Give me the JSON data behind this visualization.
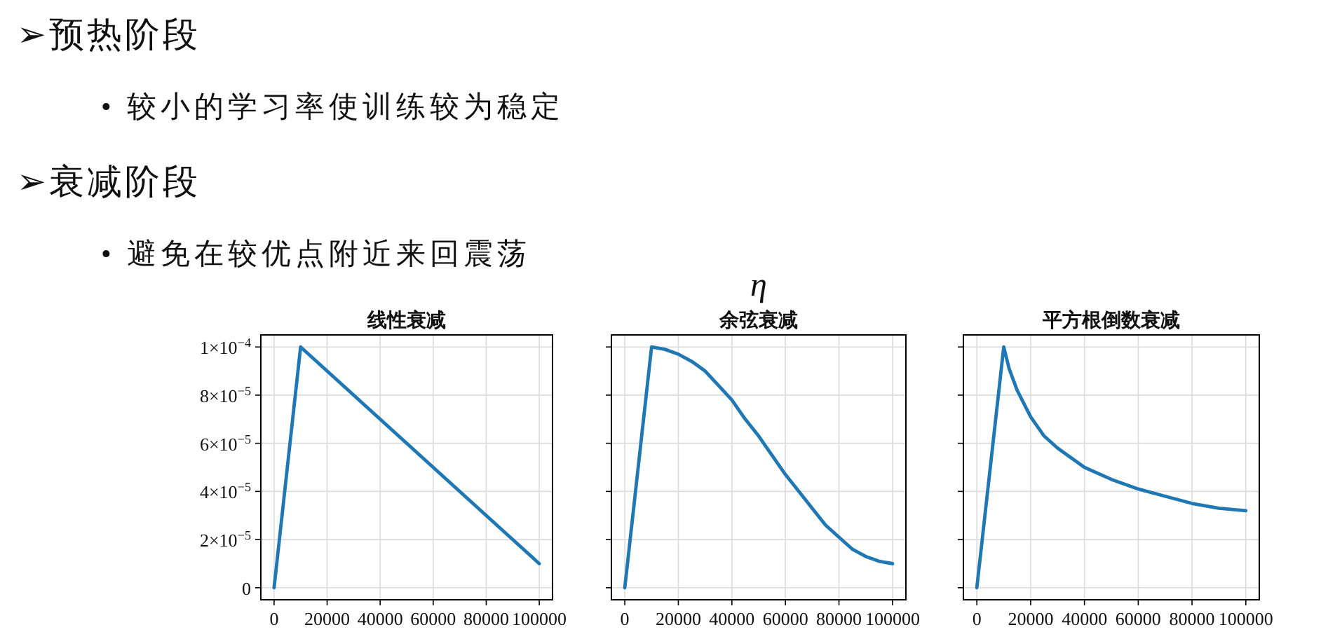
{
  "chart_data": [
    {
      "type": "other",
      "annotations": [
        "➢预热阶段",
        "• 较小的学习率使训练较为稳定",
        "➢衰减阶段",
        "• 避免在较优点附近来回震荡"
      ]
    },
    {
      "type": "line",
      "title": "线性衰减",
      "x": [
        0,
        10000,
        100000
      ],
      "series": [
        {
          "color": "#1f77b4",
          "values": [
            0,
            0.0001,
            1e-05
          ]
        }
      ],
      "xlim": [
        -5000,
        105000
      ],
      "ylim": [
        -5e-06,
        0.000105
      ],
      "xticks": [
        0,
        20000,
        40000,
        60000,
        80000,
        100000
      ],
      "yticks": [
        {
          "value": 0,
          "label": "0"
        },
        {
          "value": 2e-05,
          "label": "2×10$^{−5}$"
        },
        {
          "value": 4e-05,
          "label": "4×10$^{−5}$"
        },
        {
          "value": 6e-05,
          "label": "6×10$^{−5}$"
        },
        {
          "value": 8e-05,
          "label": "8×10$^{−5}$"
        },
        {
          "value": 0.0001,
          "label": "1×10$^{−4}$"
        }
      ],
      "grid": true
    },
    {
      "type": "line",
      "title": "余弦衰减",
      "annotations": [
        "η"
      ],
      "x": [
        0,
        10000,
        15000,
        20000,
        25000,
        30000,
        35000,
        40000,
        45000,
        50000,
        55000,
        60000,
        65000,
        70000,
        75000,
        80000,
        85000,
        90000,
        95000,
        100000
      ],
      "series": [
        {
          "color": "#1f77b4",
          "values": [
            0,
            0.0001,
            9.9e-05,
            9.7e-05,
            9.4e-05,
            9e-05,
            8.4e-05,
            7.8e-05,
            7e-05,
            6.3e-05,
            5.5e-05,
            4.7e-05,
            4e-05,
            3.3e-05,
            2.6e-05,
            2.1e-05,
            1.6e-05,
            1.3e-05,
            1.1e-05,
            1e-05
          ]
        }
      ],
      "xlim": [
        -5000,
        105000
      ],
      "ylim": [
        -5e-06,
        0.000105
      ],
      "xticks": [
        0,
        20000,
        40000,
        60000,
        80000,
        100000
      ],
      "yticks": [
        {
          "value": 0,
          "label": null
        },
        {
          "value": 2e-05,
          "label": null
        },
        {
          "value": 4e-05,
          "label": null
        },
        {
          "value": 6e-05,
          "label": null
        },
        {
          "value": 8e-05,
          "label": null
        },
        {
          "value": 0.0001,
          "label": null
        }
      ],
      "grid": true,
      "tick_labels": "x"
    },
    {
      "type": "line",
      "title": "平方根倒数衰减",
      "x": [
        0,
        10000,
        12000,
        15000,
        20000,
        25000,
        30000,
        40000,
        50000,
        60000,
        70000,
        80000,
        90000,
        100000
      ],
      "series": [
        {
          "color": "#1f77b4",
          "values": [
            0,
            0.0001,
            9.1e-05,
            8.2e-05,
            7.1e-05,
            6.3e-05,
            5.8e-05,
            5e-05,
            4.5e-05,
            4.1e-05,
            3.8e-05,
            3.5e-05,
            3.3e-05,
            3.2e-05
          ]
        }
      ],
      "xlim": [
        -5000,
        105000
      ],
      "ylim": [
        -5e-06,
        0.000105
      ],
      "xticks": [
        0,
        20000,
        40000,
        60000,
        80000,
        100000
      ],
      "yticks": [
        {
          "value": 0,
          "label": null
        },
        {
          "value": 2e-05,
          "label": null
        },
        {
          "value": 4e-05,
          "label": null
        },
        {
          "value": 6e-05,
          "label": null
        },
        {
          "value": 8e-05,
          "label": null
        },
        {
          "value": 0.0001,
          "label": null
        }
      ],
      "grid": true,
      "tick_labels": "x"
    }
  ]
}
